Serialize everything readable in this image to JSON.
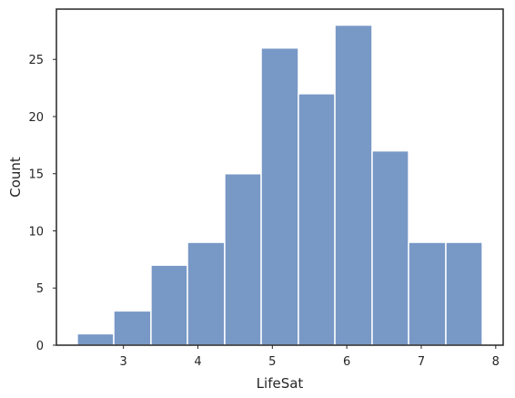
{
  "chart_data": {
    "type": "bar",
    "subtype": "histogram",
    "bins": [
      {
        "start": 2.38,
        "end": 2.87,
        "count": 1
      },
      {
        "start": 2.87,
        "end": 3.37,
        "count": 3
      },
      {
        "start": 3.37,
        "end": 3.86,
        "count": 7
      },
      {
        "start": 3.86,
        "end": 4.36,
        "count": 9
      },
      {
        "start": 4.36,
        "end": 4.85,
        "count": 15
      },
      {
        "start": 4.85,
        "end": 5.35,
        "count": 26
      },
      {
        "start": 5.35,
        "end": 5.84,
        "count": 22
      },
      {
        "start": 5.84,
        "end": 6.34,
        "count": 28
      },
      {
        "start": 6.34,
        "end": 6.83,
        "count": 17
      },
      {
        "start": 6.83,
        "end": 7.33,
        "count": 9
      },
      {
        "start": 7.33,
        "end": 7.82,
        "count": 9
      }
    ],
    "xlabel": "LifeSat",
    "ylabel": "Count",
    "xlim": [
      2.1,
      8.1
    ],
    "ylim": [
      0,
      29.4
    ],
    "xticks": [
      3,
      4,
      5,
      6,
      7,
      8
    ],
    "yticks": [
      0,
      5,
      10,
      15,
      20,
      25
    ],
    "bar_color": "#7898c6",
    "grid": false,
    "legend": "none"
  }
}
